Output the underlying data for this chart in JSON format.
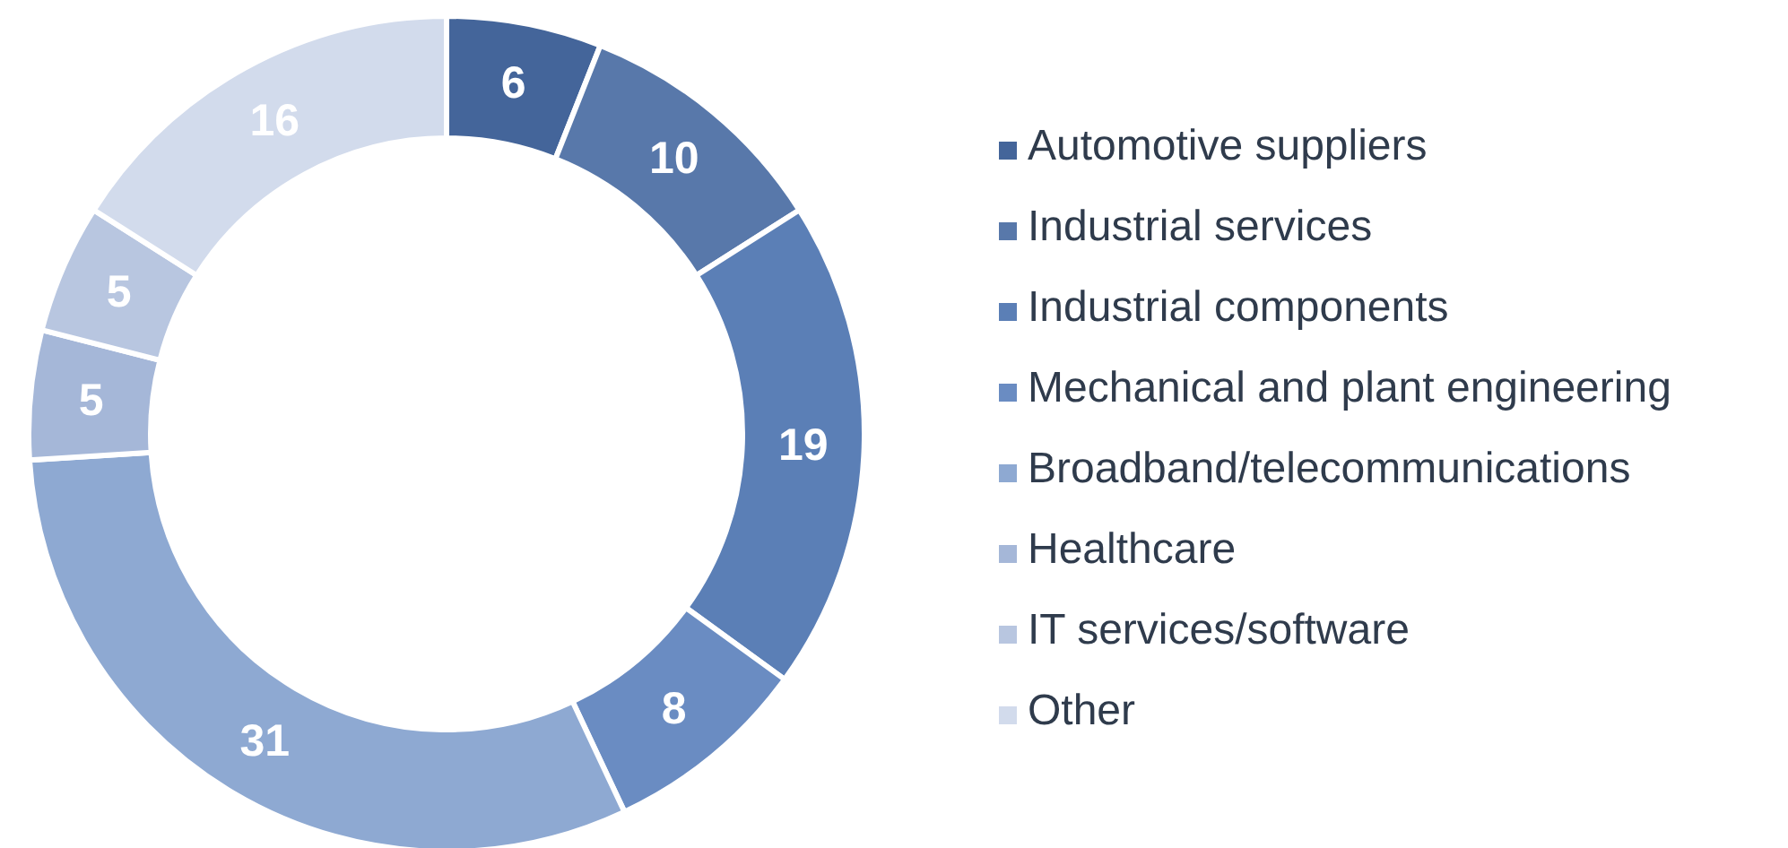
{
  "chart_data": {
    "type": "donut",
    "categories": [
      "Automotive suppliers",
      "Industrial services",
      "Industrial components",
      "Mechanical and plant engineering",
      "Broadband/telecommunications",
      "Healthcare",
      "IT services/software",
      "Other"
    ],
    "values": [
      6,
      10,
      19,
      8,
      31,
      5,
      5,
      16
    ],
    "colors": [
      "#44659a",
      "#5878aa",
      "#5b7fb6",
      "#6a8cc2",
      "#8ea9d2",
      "#a5b7d8",
      "#b8c6e0",
      "#d2dbec"
    ],
    "data_labels": true,
    "legend": "right"
  }
}
